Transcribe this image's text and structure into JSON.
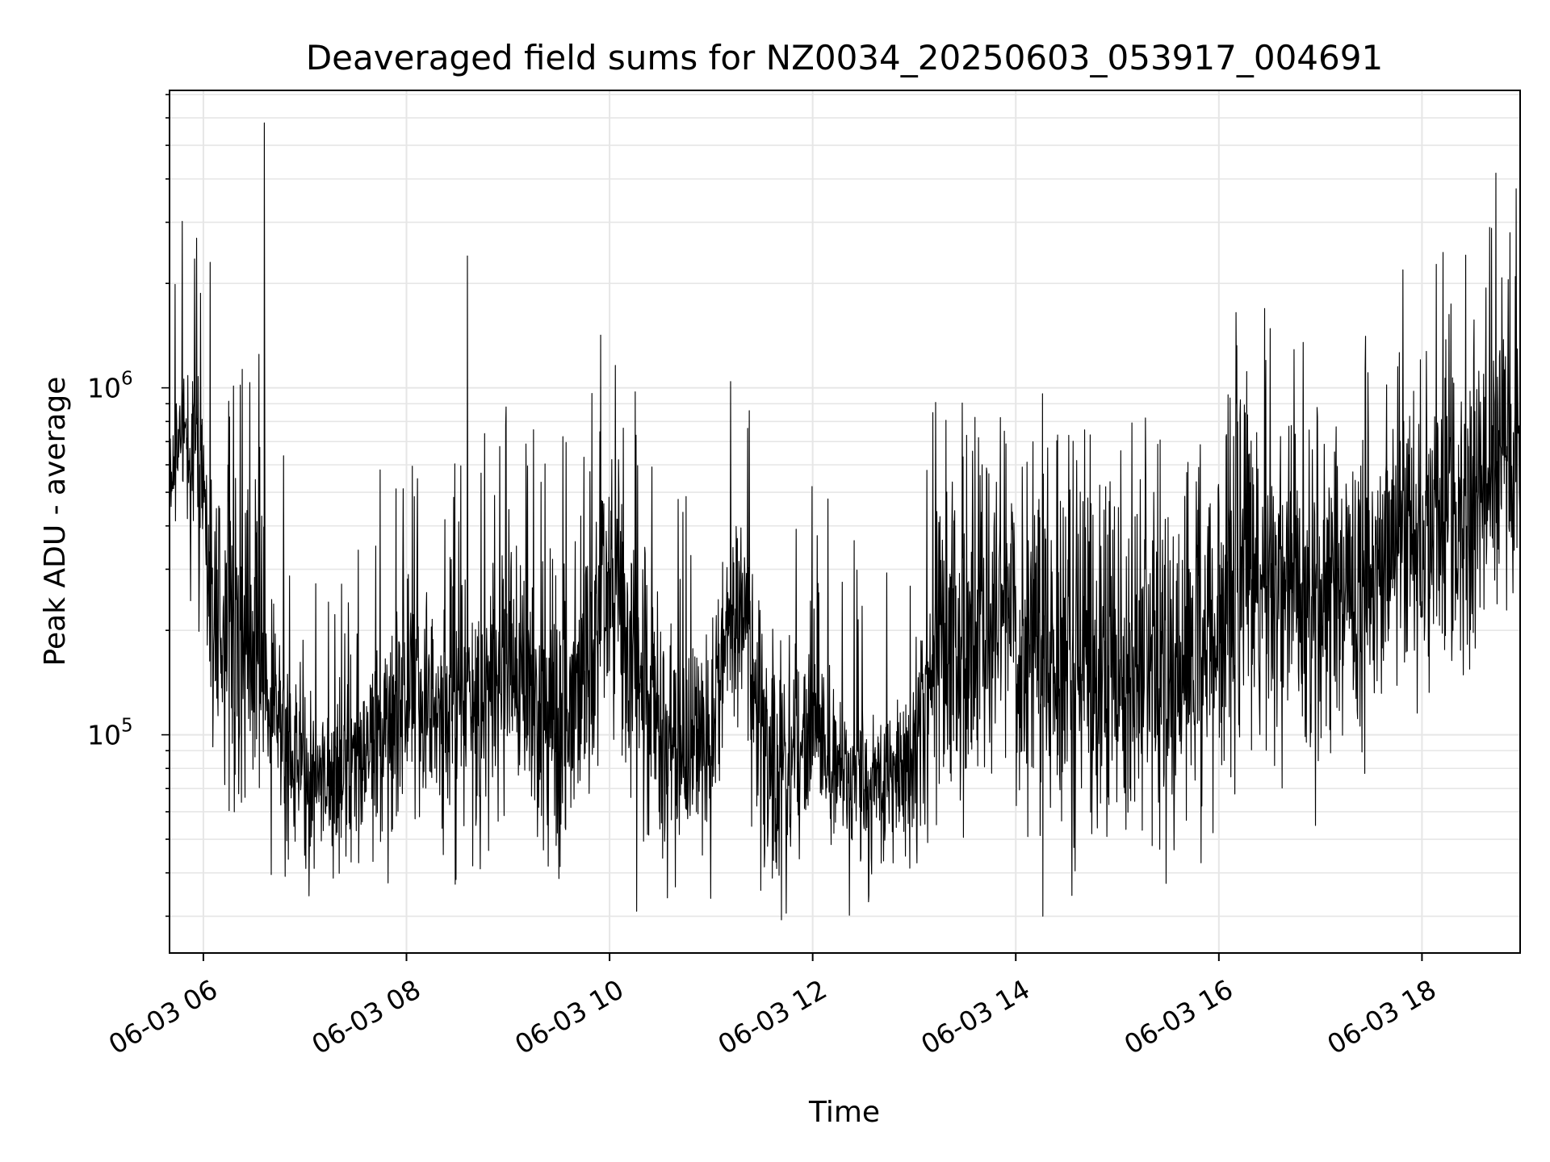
{
  "chart_data": {
    "type": "line",
    "title": "Deaveraged field sums for NZ0034_20250603_053917_004691",
    "xlabel": "Time",
    "ylabel": "Peak ADU - average",
    "x_tick_labels": [
      "06-03 06",
      "06-03 08",
      "06-03 10",
      "06-03 12",
      "06-03 14",
      "06-03 16",
      "06-03 18"
    ],
    "y_tick_labels": [
      {
        "base": "10",
        "exp": "5",
        "value": 100000
      },
      {
        "base": "10",
        "exp": "6",
        "value": 1000000
      }
    ],
    "xlim": [
      "2025-06-03 05:40",
      "2025-06-03 18:58"
    ],
    "ylim": [
      23500,
      7200000
    ],
    "yscale": "log",
    "grid": true,
    "line_color": "#000000",
    "grid_color": "#e6e6e6",
    "series": [
      {
        "x": [
          "05:40",
          "05:48",
          "05:56",
          "06:04",
          "06:12",
          "06:20",
          "06:30",
          "06:40",
          "06:50",
          "07:00",
          "07:15",
          "07:30",
          "07:45",
          "08:00",
          "08:15",
          "08:30",
          "08:45",
          "09:00",
          "09:15",
          "09:30",
          "09:45",
          "10:00",
          "10:15",
          "10:30",
          "10:45",
          "11:00",
          "11:15",
          "11:30",
          "11:45",
          "12:00",
          "12:15",
          "12:30",
          "12:45",
          "13:00",
          "13:15",
          "13:30",
          "13:45",
          "14:00",
          "14:15",
          "14:30",
          "14:45",
          "15:00",
          "15:15",
          "15:30",
          "15:45",
          "16:00",
          "16:15",
          "16:30",
          "16:45",
          "17:00",
          "17:15",
          "17:30",
          "17:45",
          "18:00",
          "18:15",
          "18:30",
          "18:45",
          "18:58"
        ],
        "median": [
          500000,
          800000,
          600000,
          260000,
          210000,
          180000,
          230000,
          120000,
          95000,
          80000,
          70000,
          90000,
          105000,
          140000,
          120000,
          110000,
          125000,
          150000,
          125000,
          110000,
          140000,
          300000,
          180000,
          110000,
          85000,
          100000,
          250000,
          105000,
          80000,
          115000,
          75000,
          70000,
          70000,
          85000,
          180000,
          195000,
          200000,
          210000,
          180000,
          170000,
          150000,
          150000,
          145000,
          150000,
          155000,
          240000,
          280000,
          300000,
          290000,
          230000,
          250000,
          260000,
          380000,
          420000,
          400000,
          450000,
          700000,
          650000
        ],
        "spread": [
          0.12,
          0.14,
          0.3,
          0.35,
          0.35,
          0.4,
          0.4,
          0.35,
          0.3,
          0.25,
          0.22,
          0.28,
          0.3,
          0.32,
          0.32,
          0.32,
          0.32,
          0.32,
          0.32,
          0.32,
          0.32,
          0.35,
          0.35,
          0.3,
          0.28,
          0.3,
          0.3,
          0.3,
          0.28,
          0.3,
          0.22,
          0.22,
          0.22,
          0.25,
          0.42,
          0.42,
          0.44,
          0.44,
          0.44,
          0.44,
          0.44,
          0.42,
          0.42,
          0.42,
          0.42,
          0.42,
          0.42,
          0.42,
          0.42,
          0.42,
          0.4,
          0.4,
          0.38,
          0.38,
          0.38,
          0.38,
          0.4,
          0.4
        ],
        "notable_points": [
          {
            "x": "06:36",
            "y": 5800000
          },
          {
            "x": "08:36",
            "y": 2400000
          },
          {
            "x": "10:16",
            "y": 31000
          },
          {
            "x": "14:16",
            "y": 30000
          },
          {
            "x": "05:56",
            "y": 2700000
          },
          {
            "x": "06:04",
            "y": 2300000
          },
          {
            "x": "18:40",
            "y": 2900000
          },
          {
            "x": "18:52",
            "y": 2800000
          },
          {
            "x": "12:33",
            "y": 33000
          }
        ]
      }
    ]
  }
}
